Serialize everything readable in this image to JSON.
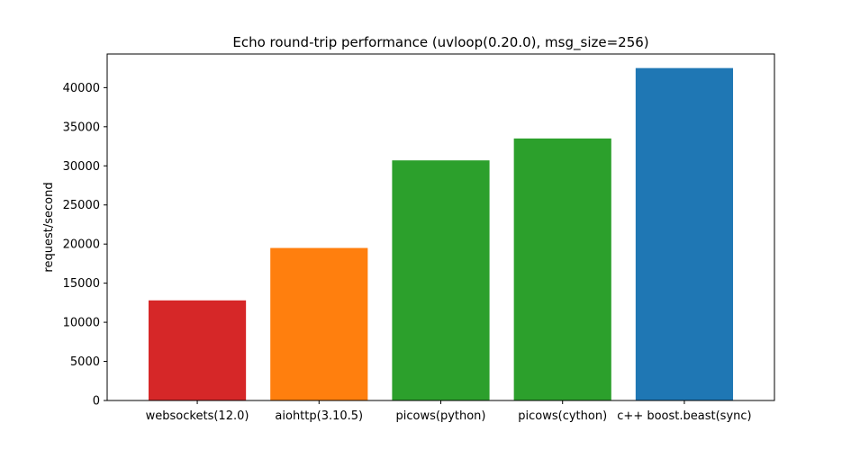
{
  "chart_data": {
    "type": "bar",
    "title": "Echo round-trip performance (uvloop(0.20.0), msg_size=256)",
    "xlabel": "",
    "ylabel": "request/second",
    "categories": [
      "websockets(12.0)",
      "aiohttp(3.10.5)",
      "picows(python)",
      "picows(cython)",
      "c++ boost.beast(sync)"
    ],
    "values": [
      12800,
      19500,
      30700,
      33500,
      42500
    ],
    "colors": [
      "#d62728",
      "#ff7f0e",
      "#2ca02c",
      "#2ca02c",
      "#1f77b4"
    ],
    "ylim": [
      0,
      44300
    ],
    "yticks": [
      0,
      5000,
      10000,
      15000,
      20000,
      25000,
      30000,
      35000,
      40000
    ],
    "ytick_labels": [
      "0",
      "5000",
      "10000",
      "15000",
      "20000",
      "25000",
      "30000",
      "35000",
      "40000"
    ],
    "grid": false,
    "legend": "none"
  }
}
